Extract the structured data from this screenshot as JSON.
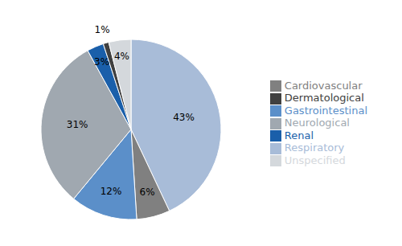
{
  "chart_data": {
    "type": "pie",
    "categories": [
      "Respiratory",
      "Cardiovascular",
      "Gastrointestinal",
      "Neurological",
      "Renal",
      "Dermatological",
      "Unspecified"
    ],
    "values": [
      43,
      6,
      12,
      31,
      3,
      1,
      4
    ],
    "value_labels": [
      "43%",
      "6%",
      "12%",
      "31%",
      "3%",
      "1%",
      "4%"
    ],
    "colors": [
      "#a8bcd8",
      "#808080",
      "#5b8fc9",
      "#a0a8b0",
      "#1a5faa",
      "#404040",
      "#d4d8dc"
    ],
    "data_labels": true,
    "legend": "right"
  }
}
